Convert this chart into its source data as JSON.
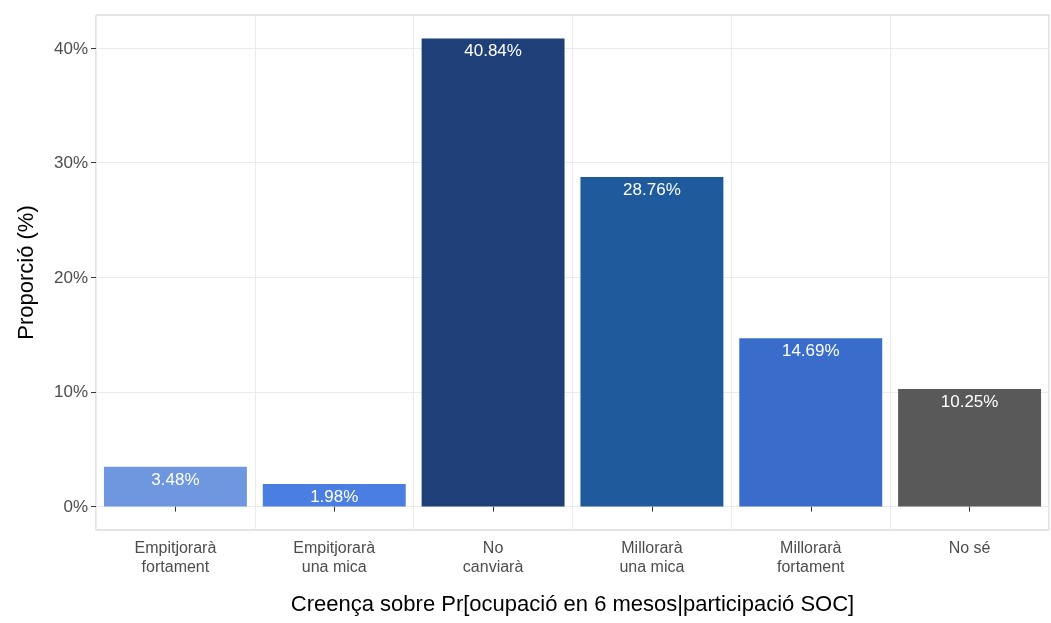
{
  "chart_data": {
    "type": "bar",
    "xlabel": "Creença sobre Pr[ocupació en 6 mesos|participació SOC]",
    "ylabel": "Proporció (%)",
    "categories": [
      "Empitjorarà\nfortament",
      "Empitjorarà\nuna mica",
      "No\ncanviarà",
      "Millorarà\nuna mica",
      "Millorarà\nfortament",
      "No sé"
    ],
    "values": [
      3.48,
      1.98,
      40.84,
      28.76,
      14.69,
      10.25
    ],
    "colors": [
      "#6e97e0",
      "#4a7ee0",
      "#1f3f78",
      "#1f5a9c",
      "#3a6dcb",
      "#595959"
    ],
    "value_labels": [
      "3.48%",
      "1.98%",
      "40.84%",
      "28.76%",
      "14.69%",
      "10.25%"
    ],
    "ylim": [
      -2.04,
      42.88
    ],
    "yticks": [
      {
        "value": 0,
        "label": "0%"
      },
      {
        "value": 10,
        "label": "10%"
      },
      {
        "value": 20,
        "label": "20%"
      },
      {
        "value": 30,
        "label": "30%"
      },
      {
        "value": 40,
        "label": "40%"
      }
    ],
    "grid": true
  }
}
